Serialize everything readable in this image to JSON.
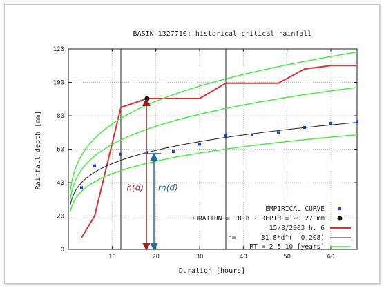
{
  "chart_data": {
    "type": "line",
    "title": "BASIN 1327710: historical critical rainfall",
    "xlabel": "Duration [hours]",
    "ylabel": "Rainfall depth [mm]",
    "xlim": [
      0,
      66
    ],
    "ylim": [
      0,
      120
    ],
    "x_ticks": [
      10,
      20,
      30,
      40,
      50,
      60
    ],
    "y_ticks": [
      0,
      20,
      40,
      60,
      80,
      100,
      120
    ],
    "grid": true,
    "legend_position": "bottom-right",
    "legend": {
      "empirical": "EMPIRICAL CURVE",
      "duration_label": "DURATION = 18 h - DEPTH = 90.27 mm",
      "event_label": "15/8/2003 h. 6",
      "idf_prefix": "h=",
      "idf_formula": "31.8*d^(",
      "idf_exponent": "0.208)",
      "rt_label": "RT =  2   5  10 [years]"
    },
    "annotations": {
      "hd": "h(d)",
      "md": "m(d)"
    },
    "vertical_lines": [
      12,
      36
    ],
    "series": [
      {
        "name": "EMPIRICAL CURVE",
        "kind": "points",
        "color": "#1a3cff",
        "x": [
          3,
          6,
          12,
          18,
          24,
          30,
          36,
          42,
          48,
          54,
          60,
          66
        ],
        "y": [
          37,
          50,
          57,
          58,
          58.5,
          63,
          68,
          68.5,
          70,
          73,
          75.5,
          76.5
        ]
      },
      {
        "name": "15/8/2003 h. 6",
        "kind": "line",
        "color": "#e03030",
        "x": [
          3,
          6,
          12,
          18,
          24,
          30,
          36,
          42,
          48,
          54,
          60,
          66
        ],
        "y": [
          7,
          20,
          85,
          90.3,
          90.3,
          90.3,
          99.5,
          99.5,
          99.5,
          108,
          110,
          110
        ]
      },
      {
        "name": "31.8*d^(0.208)",
        "kind": "power",
        "color": "#222222",
        "a": 31.8,
        "b": 0.208
      },
      {
        "name": "RT 2",
        "kind": "power",
        "color": "#44ee44",
        "a": 27.3,
        "b": 0.22
      },
      {
        "name": "RT 5",
        "kind": "power",
        "color": "#44ee44",
        "a": 37.0,
        "b": 0.23
      },
      {
        "name": "RT 10",
        "kind": "power",
        "color": "#44ee44",
        "a": 43.2,
        "b": 0.24
      }
    ],
    "highlight_point": {
      "x": 18,
      "y": 90.27
    },
    "mean_point": {
      "x": 18,
      "y": 57.4
    },
    "colors": {
      "hd_arrow": "#9b2222",
      "md_arrow": "#2a6a9a"
    }
  }
}
